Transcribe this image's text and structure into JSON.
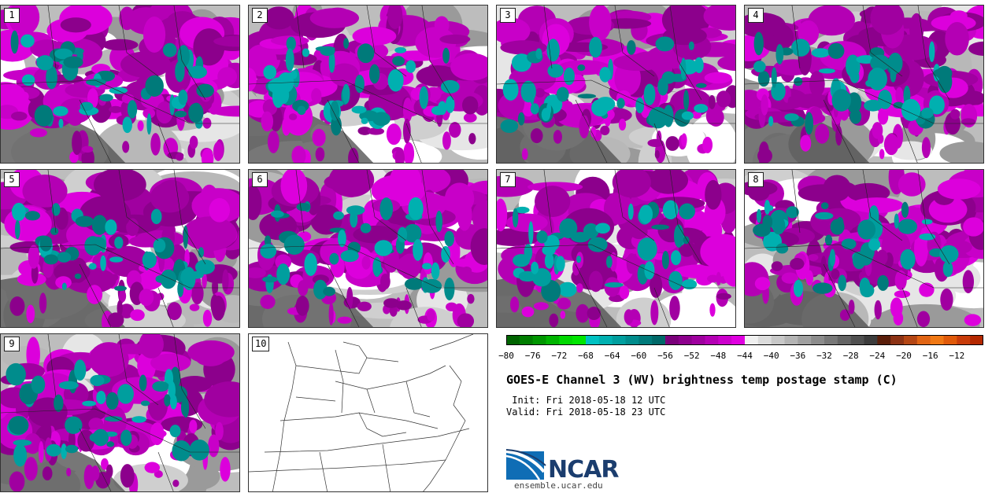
{
  "panels": [
    {
      "label": "1"
    },
    {
      "label": "2"
    },
    {
      "label": "3"
    },
    {
      "label": "4"
    },
    {
      "label": "5"
    },
    {
      "label": "6"
    },
    {
      "label": "7"
    },
    {
      "label": "8"
    },
    {
      "label": "9"
    },
    {
      "label": "10"
    }
  ],
  "colorbar": {
    "tick_labels": [
      "−80",
      "−76",
      "−72",
      "−68",
      "−64",
      "−60",
      "−56",
      "−52",
      "−48",
      "−44",
      "−40",
      "−36",
      "−32",
      "−28",
      "−24",
      "−20",
      "−16",
      "−12"
    ],
    "colors": [
      "#006400",
      "#007d00",
      "#009600",
      "#00b400",
      "#00d800",
      "#00e600",
      "#00c2c2",
      "#00b0b0",
      "#009e9e",
      "#008c8c",
      "#007a7a",
      "#006868",
      "#7a007a",
      "#8c008c",
      "#9e009e",
      "#b400b4",
      "#cc00cc",
      "#e000e0",
      "#f0f0f0",
      "#dcdcdc",
      "#c8c8c8",
      "#b4b4b4",
      "#a0a0a0",
      "#8c8c8c",
      "#787878",
      "#646464",
      "#505050",
      "#3c3c3c",
      "#5a1e0a",
      "#8c3214",
      "#b44614",
      "#e06414",
      "#f07814",
      "#e05a0a",
      "#c83c0a",
      "#b42800"
    ]
  },
  "title": "GOES-E Channel 3 (WV) brightness temp postage stamp (C)",
  "init_line": " Init: Fri 2018-05-18 12 UTC",
  "valid_line": "Valid: Fri 2018-05-18 23 UTC",
  "logo": {
    "word": "NCAR",
    "site": "ensemble.ucar.edu"
  }
}
